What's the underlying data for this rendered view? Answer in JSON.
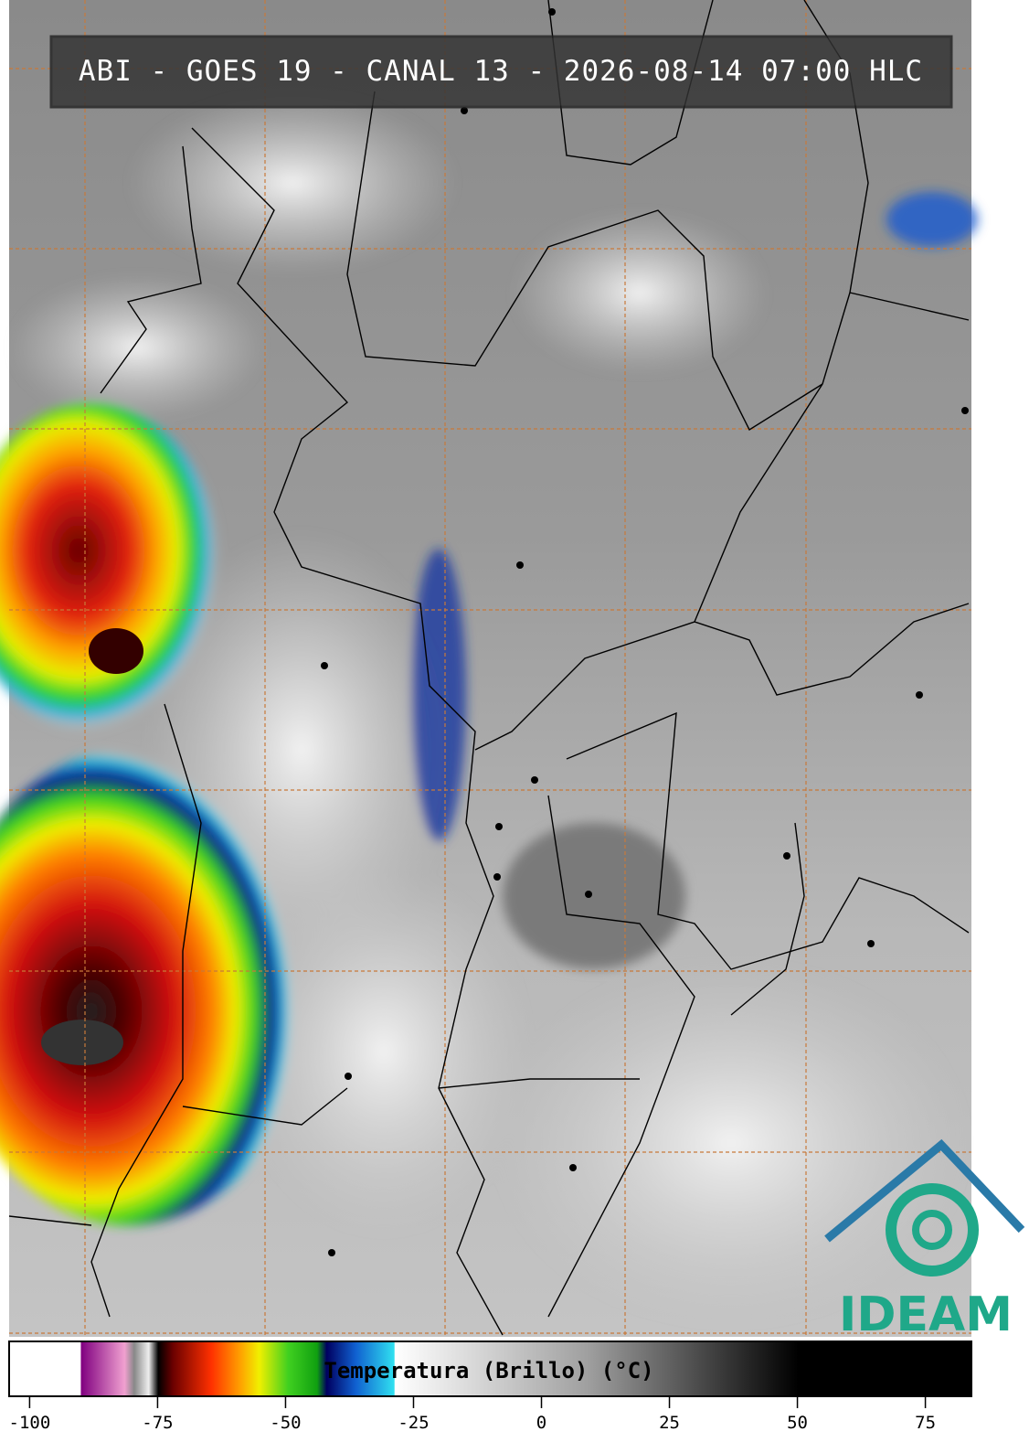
{
  "header": {
    "title": "ABI - GOES 19 - CANAL 13 - 2026-08-14 07:00 HLC"
  },
  "logo": {
    "text": "IDEAM"
  },
  "colorbar": {
    "label": "Temperatura (Brillo) (°C)",
    "xlim": [
      -104,
      84
    ],
    "xticks": [
      -100,
      -75,
      -50,
      -25,
      0,
      25,
      50,
      75
    ]
  }
}
